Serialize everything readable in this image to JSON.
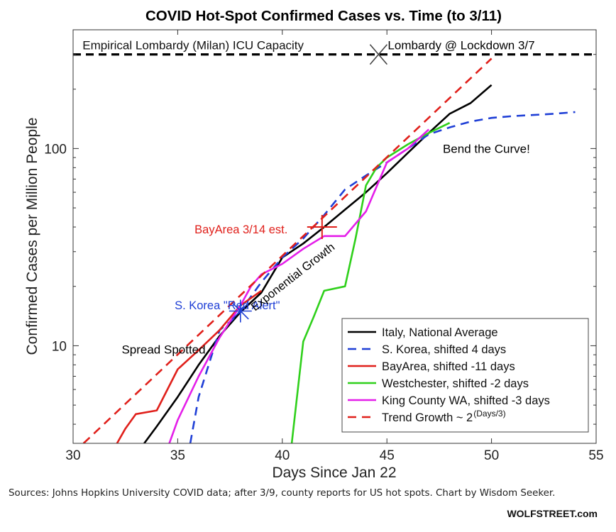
{
  "source_text": "Sources: Johns Hopkins University COVID data; after 3/9, county reports for US hot spots. Chart by Wisdom Seeker.",
  "brand": "WOLFSTREET.com",
  "chart_data": {
    "type": "line",
    "title": "COVID Hot-Spot Confirmed Cases vs. Time (to 3/11)",
    "xlabel": "Days Since Jan 22",
    "ylabel": "Confirmed Cases per Million People",
    "xlim": [
      30,
      55
    ],
    "ylim": [
      3.2,
      400
    ],
    "yscale": "log",
    "xticks": [
      30,
      35,
      40,
      45,
      50,
      55
    ],
    "yticks": [
      {
        "value": 10,
        "label": "10"
      },
      {
        "value": 100,
        "label": "100"
      }
    ],
    "grid": false,
    "legend_position": "bottom-right",
    "reference_line": {
      "label": "Empirical Lombardy (Milan) ICU Capacity",
      "y": 300,
      "color": "#000000",
      "dash": true
    },
    "series": [
      {
        "name": "Italy, National Average",
        "color": "#000000",
        "dash": false,
        "x": [
          33.4,
          34,
          35,
          36,
          37,
          38,
          39,
          40,
          41,
          42,
          43,
          44,
          45,
          46,
          47,
          48,
          49,
          50
        ],
        "y": [
          3.2,
          3.9,
          5.5,
          8.0,
          11.2,
          14.8,
          18.6,
          28,
          33,
          40,
          49,
          60,
          75,
          95,
          120,
          150,
          170,
          210
        ]
      },
      {
        "name": "S. Korea, shifted 4 days",
        "color": "#1f3fd6",
        "dash": true,
        "x": [
          35.6,
          36,
          37,
          37.6,
          38,
          39,
          40,
          41,
          42,
          43,
          44,
          45,
          46,
          47,
          48,
          49,
          50,
          51,
          52,
          53,
          54
        ],
        "y": [
          3.2,
          5.5,
          12,
          13.5,
          15,
          21,
          28,
          35,
          46,
          62,
          73,
          85,
          100,
          118,
          128,
          137,
          143,
          146,
          148,
          150,
          153
        ]
      },
      {
        "name": "BayArea, shifted -11 days",
        "color": "#e0201b",
        "dash": false,
        "x": [
          32.1,
          32.5,
          33,
          34,
          35,
          36,
          37,
          38,
          39
        ],
        "y": [
          3.2,
          3.8,
          4.5,
          4.7,
          7.6,
          9.5,
          12,
          16,
          19
        ]
      },
      {
        "name": "Westchester, shifted -2 days",
        "color": "#2fd01b",
        "dash": false,
        "x": [
          40.45,
          41,
          41.5,
          42,
          43,
          43.5,
          44,
          44.5,
          45,
          46,
          47,
          48
        ],
        "y": [
          3.2,
          10.5,
          14,
          19,
          20,
          35,
          65,
          80,
          90,
          105,
          120,
          135
        ]
      },
      {
        "name": "King County WA, shifted -3 days",
        "color": "#e41ee9",
        "dash": false,
        "x": [
          34.6,
          35,
          36,
          37,
          38,
          38.5,
          39,
          40,
          41,
          42,
          43,
          44,
          45,
          46,
          47
        ],
        "y": [
          3.2,
          4.2,
          7,
          11,
          16,
          20,
          23,
          26,
          31,
          36,
          36,
          48,
          85,
          100,
          125
        ]
      },
      {
        "name": "Trend Growth ~ 2",
        "superscript": "(Days/3)",
        "color": "#e0201b",
        "dash": true,
        "x": [
          30.5,
          50
        ],
        "y": [
          3.2,
          286
        ]
      }
    ],
    "annotations": [
      {
        "text": "Lombardy @ Lockdown 3/7",
        "x": 46.6,
        "y": 300,
        "color": "#000000",
        "marker": "x",
        "marker_x": 44.6
      },
      {
        "text": "Bend the Curve!",
        "x": 49.3,
        "y": 100,
        "color": "#000000"
      },
      {
        "text": "BayArea 3/14 est.",
        "x": 37.4,
        "y": 40,
        "color": "#e0201b",
        "marker": "+",
        "marker_x": 41.9
      },
      {
        "text": "S. Korea \"Red Alert\"",
        "x": 35.6,
        "y": 16.1,
        "color": "#1f3fd6",
        "marker": "*",
        "marker_x": 38.0
      },
      {
        "text": "Exponential Growth",
        "x": 41.6,
        "y": 24,
        "color": "#000000",
        "rotate": -38
      },
      {
        "text": "Spread Spotted",
        "x": 33.0,
        "y": 9.6,
        "color": "#000000"
      }
    ]
  }
}
